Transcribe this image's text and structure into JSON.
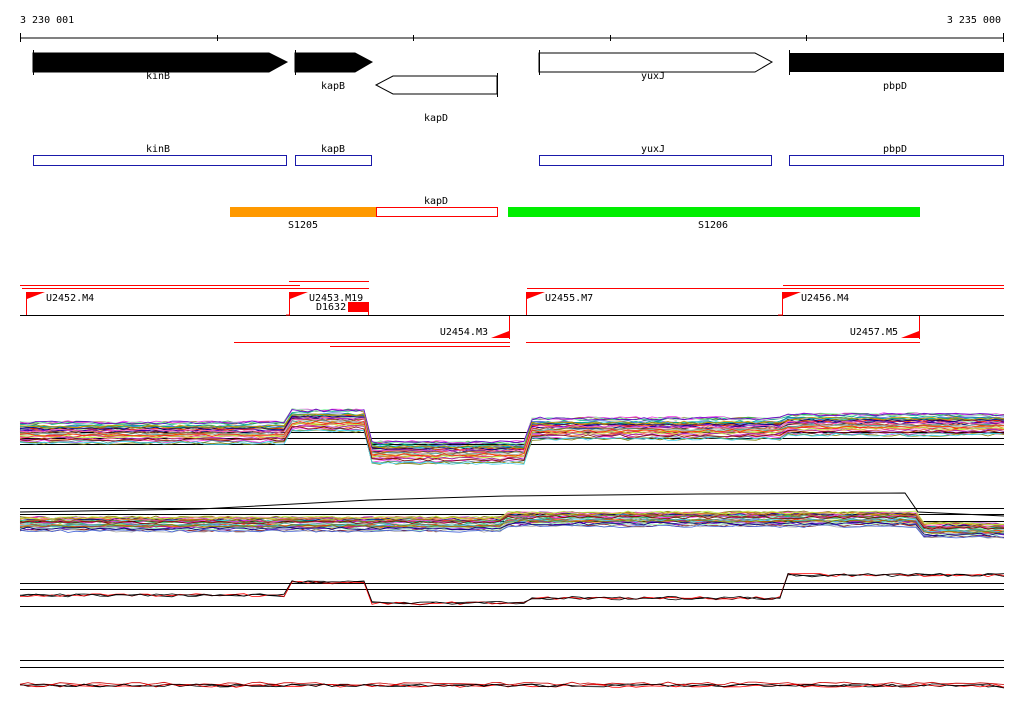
{
  "ruler": {
    "start_label": "3 230 001",
    "end_label": "3 235 000"
  },
  "genes": [
    {
      "name": "kinB",
      "strand": "+",
      "fill": "#000000"
    },
    {
      "name": "kapB",
      "strand": "+",
      "fill": "#000000"
    },
    {
      "name": "kapD",
      "strand": "-",
      "fill": "#ffffff"
    },
    {
      "name": "yuxJ",
      "strand": "+",
      "fill": "#ffffff"
    },
    {
      "name": "pbpD",
      "strand": "+",
      "fill": "#000000"
    }
  ],
  "cds_boxes": [
    "kinB",
    "kapB",
    "yuxJ",
    "pbpD"
  ],
  "segments": [
    {
      "name": "S1205",
      "color": "#ff9900"
    },
    {
      "name": "kapD",
      "color": "#ff0000"
    },
    {
      "name": "S1206",
      "color": "#00ee00"
    }
  ],
  "transcripts_upper": [
    "U2452.M4",
    "U2453.M19",
    "U2455.M7",
    "U2456.M4"
  ],
  "transcripts_lower": [
    "U2454.M3",
    "U2457.M5"
  ],
  "terminator_label": "D1632",
  "colors": {
    "accent": "#ff0000",
    "cds_outline": "#1a1aaa",
    "segment_orange": "#ff9900",
    "segment_green": "#00ee00"
  }
}
